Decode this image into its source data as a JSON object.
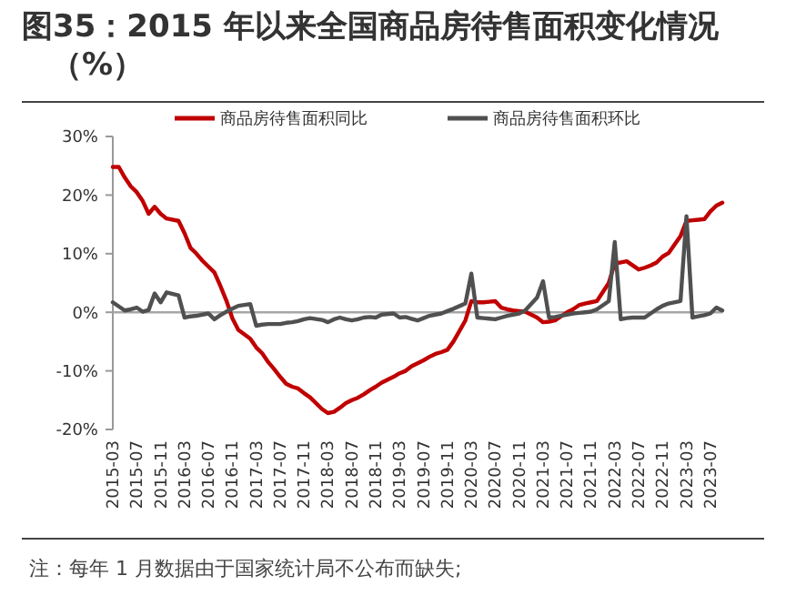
{
  "chart_data": {
    "type": "line",
    "title": "图35：2015 年以来全国商品房待售面积变化情况（%）",
    "categories": [
      "2015-03",
      null,
      null,
      null,
      "2015-07",
      null,
      null,
      null,
      "2015-11",
      null,
      null,
      null,
      "2016-03",
      null,
      null,
      null,
      "2016-07",
      null,
      null,
      null,
      "2016-11",
      null,
      null,
      null,
      "2017-03",
      null,
      null,
      null,
      "2017-07",
      null,
      null,
      null,
      "2017-11",
      null,
      null,
      null,
      "2018-03",
      null,
      null,
      null,
      "2018-07",
      null,
      null,
      null,
      "2018-11",
      null,
      null,
      null,
      "2019-03",
      null,
      null,
      null,
      "2019-07",
      null,
      null,
      null,
      "2019-11",
      null,
      null,
      null,
      "2020-03",
      null,
      null,
      null,
      "2020-07",
      null,
      null,
      null,
      "2020-11",
      null,
      null,
      null,
      "2021-03",
      null,
      null,
      null,
      "2021-07",
      null,
      null,
      null,
      "2021-11",
      null,
      null,
      null,
      "2022-03",
      null,
      null,
      null,
      "2022-07",
      null,
      null,
      null,
      "2022-11",
      null,
      null,
      null,
      "2023-03",
      null,
      null,
      null,
      "2023-07",
      null,
      null
    ],
    "series": [
      {
        "name": "商品房待售面积同比",
        "color": "#c00000",
        "values": [
          24.8,
          24.8,
          23,
          21.5,
          20.5,
          19,
          16.8,
          18.0,
          16.8,
          16,
          null,
          15.6,
          13.5,
          11,
          10,
          8.8,
          7.8,
          6.8,
          4.5,
          2,
          -1,
          -3,
          null,
          -4.5,
          -6,
          -7,
          -8.5,
          -9.7,
          -11,
          -12.2,
          -12.7,
          -13,
          -13.8,
          -14.5,
          null,
          -16.5,
          -17.2,
          -17,
          -16.3,
          -15.5,
          -15,
          -14.6,
          -14,
          -13.3,
          -12.7,
          -12,
          null,
          -11,
          -10.4,
          -10,
          -9.2,
          -8.7,
          -8.2,
          -7.6,
          -7.1,
          -6.8,
          -6.4,
          -5,
          null,
          -1.4,
          1.9,
          1.7,
          1.7,
          1.8,
          1.9,
          0.8,
          0.5,
          0.3,
          0.2,
          0.1,
          null,
          -0.9,
          -1.7,
          -1.6,
          -1.4,
          -0.7,
          0,
          0.5,
          1.2,
          1.5,
          1.7,
          1.9,
          null,
          5,
          8.4,
          8.5,
          8.7,
          8.0,
          7.3,
          7.6,
          8.0,
          8.5,
          9.5,
          10.1,
          null,
          13,
          15.6,
          15.7,
          15.8,
          15.9,
          17.2,
          18.2,
          18.7
        ]
      },
      {
        "name": "商品房待售面积环比",
        "color": "#505050",
        "values": [
          1.7,
          1.0,
          0.3,
          0.5,
          0.8,
          0.1,
          0.4,
          3.2,
          1.7,
          3.4,
          null,
          2.9,
          -0.9,
          -0.7,
          -0.6,
          -0.4,
          -0.2,
          -1.2,
          -0.5,
          0.1,
          0.6,
          1.1,
          null,
          1.4,
          -2.3,
          -2.1,
          -2.0,
          -2.0,
          -2.0,
          -1.8,
          -1.7,
          -1.5,
          -1.2,
          -1.0,
          null,
          -1.3,
          -1.7,
          -1.2,
          -0.9,
          -1.2,
          -1.4,
          -1.2,
          -0.9,
          -0.8,
          -0.9,
          -0.4,
          null,
          -0.2,
          -0.9,
          -0.8,
          -1.1,
          -1.4,
          -1.0,
          -0.6,
          -0.4,
          -0.2,
          0.2,
          0.6,
          null,
          1.5,
          6.6,
          -0.9,
          -1.0,
          -1.1,
          -1.2,
          -0.9,
          -0.6,
          -0.4,
          -0.2,
          0.3,
          null,
          2.5,
          5.3,
          -0.9,
          -0.8,
          -0.6,
          -0.4,
          -0.2,
          -0.1,
          0,
          0.1,
          0.5,
          null,
          1.9,
          12.0,
          -1.2,
          -1.0,
          -0.9,
          -0.9,
          -0.9,
          -0.2,
          0.5,
          1.1,
          1.5,
          null,
          1.9,
          16.4,
          -0.9,
          -0.7,
          -0.5,
          -0.2,
          0.8,
          0.3
        ]
      }
    ],
    "ylim": [
      -20,
      30
    ],
    "yticks": [
      {
        "value": -20,
        "label": "-20%"
      },
      {
        "value": -10,
        "label": "-10%"
      },
      {
        "value": 0,
        "label": "0%"
      },
      {
        "value": 10,
        "label": "10%"
      },
      {
        "value": 20,
        "label": "20%"
      },
      {
        "value": 30,
        "label": "30%"
      }
    ],
    "ref_lines": [
      {
        "axis": "y",
        "value": 0,
        "color": "#a6a6a6"
      }
    ],
    "legend": "top",
    "marker": "none",
    "line_style": "solid",
    "annotations": [
      "注：每年 1 月数据由于国家统计局不公布而缺失;"
    ]
  }
}
